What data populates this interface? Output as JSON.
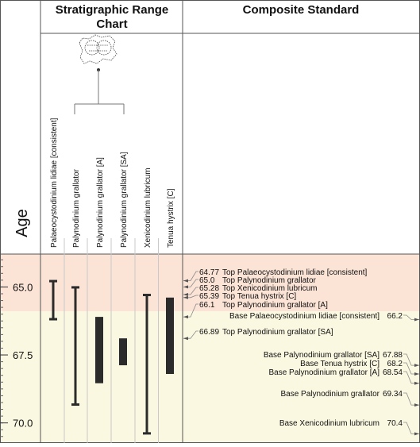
{
  "header": {
    "range_title_line1": "Stratigraphic Range",
    "range_title_line2": "Chart",
    "composite_title": "Composite Standard",
    "age_label": "Age"
  },
  "colors": {
    "upper_zone": "#fbe3d6",
    "lower_zone": "#fbf8e1",
    "range_bar": "#2b2b2b",
    "border": "#555555"
  },
  "chart_data": {
    "type": "range",
    "ylabel": "Age",
    "ylim": [
      63.79,
      70.74
    ],
    "y_ticks": [
      65.0,
      67.5,
      70.0
    ],
    "y_tick_labels": [
      "65.0",
      "67.5",
      "70.0"
    ],
    "zone_boundary": 65.9,
    "dendrogram_icon": "dendrogram-cluster-icon",
    "taxa": [
      {
        "name": "Palaeocystodinium lidiae [consistent]",
        "top": 64.77,
        "base": 66.2
      },
      {
        "name": "Palynodinium grallator",
        "top": 65.0,
        "base": 69.34
      },
      {
        "name": "Palynodinium grallator [A]",
        "top": 66.1,
        "base": 68.54
      },
      {
        "name": "Palynodinium grallator [SA]",
        "top": 66.89,
        "base": 67.88
      },
      {
        "name": "Xenicodinium lubricum",
        "top": 65.28,
        "base": 70.4
      },
      {
        "name": "Tenua hystrix [C]",
        "top": 65.39,
        "base": 68.2
      }
    ],
    "composite_top_events": [
      {
        "age": 64.77,
        "age_label": "64.77",
        "text": "Top Palaeocystodinium lidiae [consistent]"
      },
      {
        "age": 65.0,
        "age_label": "65.0",
        "text": "Top Palynodinium grallator"
      },
      {
        "age": 65.28,
        "age_label": "65.28",
        "text": "Top Xenicodinium lubricum"
      },
      {
        "age": 65.39,
        "age_label": "65.39",
        "text": "Top Tenua hystrix [C]"
      },
      {
        "age": 66.1,
        "age_label": "66.1",
        "text": "Top Palynodinium grallator [A]"
      },
      {
        "age": 66.89,
        "age_label": "66.89",
        "text": "Top Palynodinium grallator [SA]"
      }
    ],
    "composite_base_events": [
      {
        "age": 66.2,
        "age_label": "66.2",
        "text": "Base Palaeocystodinium lidiae [consistent]"
      },
      {
        "age": 67.88,
        "age_label": "67.88",
        "text": "Base Palynodinium grallator [SA]"
      },
      {
        "age": 68.2,
        "age_label": "68.2",
        "text": "Base Tenua hystrix [C]"
      },
      {
        "age": 68.54,
        "age_label": "68.54",
        "text": "Base Palynodinium grallator [A]"
      },
      {
        "age": 69.34,
        "age_label": "69.34",
        "text": "Base Palynodinium grallator"
      },
      {
        "age": 70.4,
        "age_label": "70.4",
        "text": "Base Xenicodinium lubricum"
      }
    ]
  }
}
